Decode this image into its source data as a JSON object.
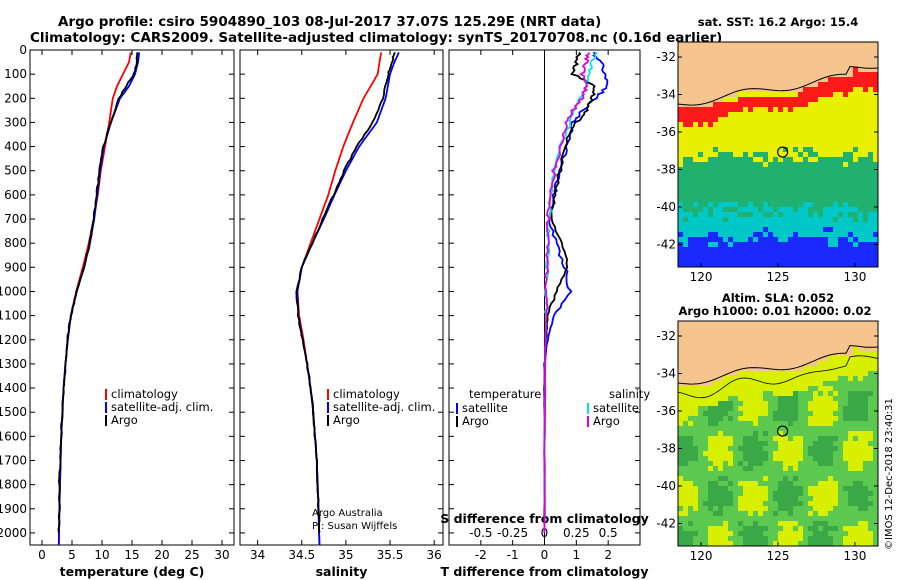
{
  "title": {
    "line1": "Argo profile: csiro 5904890_103 08-Jul-2017 37.07S 125.29E (NRT data)",
    "line2": "Climatology: CARS2009. Satellite-adjusted climatology: synTS_20170708.nc (0.16d earlier)"
  },
  "colors": {
    "climatology": "#ff0000",
    "satellite_adj": "#0000ff",
    "argo": "#000000",
    "sal_satellite": "#00e5e5",
    "sal_argo": "#e000e0",
    "land": "#f5c48f",
    "sst_red": "#ff1a1a",
    "sst_yellow": "#e8f000",
    "sst_green": "#20b070",
    "sst_cyan": "#00c8c8",
    "sst_blue": "#1a2aff",
    "sla_yellow": "#d8f000",
    "sla_green": "#5cc850"
  },
  "chart_data": [
    {
      "type": "line",
      "xlabel": "temperature (deg C)",
      "ylabel": "",
      "xlim": [
        -2,
        32
      ],
      "ylim": [
        2050,
        0
      ],
      "xticks": [
        0,
        5,
        10,
        15,
        20,
        25,
        30
      ],
      "yticks": [
        0,
        100,
        200,
        300,
        400,
        500,
        600,
        700,
        800,
        900,
        1000,
        1100,
        1200,
        1300,
        1400,
        1500,
        1600,
        1700,
        1800,
        1900,
        2000
      ],
      "legend": [
        "climatology",
        "satellite-adj. clim.",
        "Argo"
      ],
      "series": [
        {
          "name": "climatology",
          "color": "#ff0000",
          "points": [
            [
              14.8,
              10
            ],
            [
              14.5,
              50
            ],
            [
              13.5,
              100
            ],
            [
              12.5,
              150
            ],
            [
              11.8,
              200
            ],
            [
              11.2,
              300
            ],
            [
              10.5,
              400
            ],
            [
              9.8,
              500
            ],
            [
              9.3,
              600
            ],
            [
              8.6,
              700
            ],
            [
              7.8,
              800
            ],
            [
              6.8,
              900
            ],
            [
              5.7,
              1000
            ],
            [
              4.8,
              1100
            ],
            [
              4.3,
              1200
            ],
            [
              3.9,
              1300
            ],
            [
              3.6,
              1400
            ],
            [
              3.4,
              1500
            ],
            [
              3.2,
              1600
            ],
            [
              3.1,
              1700
            ],
            [
              3.0,
              1800
            ],
            [
              2.9,
              1900
            ],
            [
              2.8,
              2050
            ]
          ]
        },
        {
          "name": "satellite-adj. clim.",
          "color": "#0000ff",
          "points": [
            [
              16.2,
              10
            ],
            [
              16.0,
              50
            ],
            [
              15.5,
              100
            ],
            [
              14.5,
              150
            ],
            [
              13.0,
              200
            ],
            [
              11.5,
              300
            ],
            [
              10.3,
              400
            ],
            [
              9.7,
              500
            ],
            [
              9.2,
              600
            ],
            [
              8.7,
              700
            ],
            [
              8.0,
              800
            ],
            [
              7.0,
              900
            ],
            [
              5.8,
              1000
            ],
            [
              4.8,
              1100
            ],
            [
              4.3,
              1200
            ],
            [
              3.9,
              1300
            ],
            [
              3.6,
              1400
            ],
            [
              3.4,
              1500
            ],
            [
              3.2,
              1600
            ],
            [
              3.1,
              1700
            ],
            [
              3.0,
              1800
            ],
            [
              2.9,
              1900
            ],
            [
              2.8,
              2050
            ]
          ]
        },
        {
          "name": "Argo",
          "color": "#000000",
          "points": [
            [
              15.9,
              10
            ],
            [
              15.8,
              50
            ],
            [
              15.3,
              100
            ],
            [
              14.0,
              150
            ],
            [
              12.8,
              200
            ],
            [
              11.5,
              300
            ],
            [
              10.2,
              400
            ],
            [
              9.6,
              500
            ],
            [
              9.1,
              600
            ],
            [
              8.6,
              700
            ],
            [
              8.0,
              800
            ],
            [
              7.0,
              900
            ],
            [
              5.8,
              1000
            ],
            [
              4.8,
              1100
            ],
            [
              4.2,
              1200
            ],
            [
              3.9,
              1300
            ],
            [
              3.6,
              1400
            ],
            [
              3.4,
              1500
            ],
            [
              3.2,
              1600
            ],
            [
              3.0,
              1700
            ],
            [
              2.9,
              1800
            ],
            [
              2.9,
              1900
            ],
            [
              2.8,
              2000
            ]
          ]
        }
      ]
    },
    {
      "type": "line",
      "xlabel": "salinity",
      "ylabel": "",
      "xlim": [
        33.8,
        36.1
      ],
      "ylim": [
        2050,
        0
      ],
      "xticks": [
        34,
        34.5,
        35,
        35.5,
        36
      ],
      "legend": [
        "climatology",
        "satellite-adj. clim.",
        "Argo"
      ],
      "credit": [
        "Argo Australia",
        "PI: Susan Wijffels"
      ],
      "series": [
        {
          "name": "climatology",
          "color": "#ff0000",
          "points": [
            [
              35.4,
              10
            ],
            [
              35.38,
              50
            ],
            [
              35.36,
              100
            ],
            [
              35.2,
              200
            ],
            [
              35.08,
              300
            ],
            [
              34.97,
              400
            ],
            [
              34.88,
              500
            ],
            [
              34.8,
              600
            ],
            [
              34.7,
              700
            ],
            [
              34.6,
              800
            ],
            [
              34.5,
              900
            ],
            [
              34.45,
              1000
            ],
            [
              34.47,
              1100
            ],
            [
              34.52,
              1200
            ],
            [
              34.56,
              1300
            ],
            [
              34.6,
              1400
            ],
            [
              34.63,
              1500
            ],
            [
              34.65,
              1600
            ],
            [
              34.67,
              1700
            ],
            [
              34.68,
              1800
            ],
            [
              34.69,
              1900
            ],
            [
              34.7,
              2050
            ]
          ]
        },
        {
          "name": "satellite-adj. clim.",
          "color": "#0000ff",
          "points": [
            [
              35.6,
              10
            ],
            [
              35.55,
              50
            ],
            [
              35.5,
              100
            ],
            [
              35.45,
              200
            ],
            [
              35.35,
              300
            ],
            [
              35.15,
              400
            ],
            [
              35.0,
              500
            ],
            [
              34.87,
              600
            ],
            [
              34.75,
              700
            ],
            [
              34.62,
              800
            ],
            [
              34.5,
              900
            ],
            [
              34.45,
              1000
            ],
            [
              34.46,
              1100
            ],
            [
              34.51,
              1200
            ],
            [
              34.56,
              1300
            ],
            [
              34.6,
              1400
            ],
            [
              34.63,
              1500
            ],
            [
              34.65,
              1600
            ],
            [
              34.67,
              1700
            ],
            [
              34.68,
              1800
            ],
            [
              34.69,
              1900
            ],
            [
              34.7,
              2050
            ]
          ]
        },
        {
          "name": "Argo",
          "color": "#000000",
          "points": [
            [
              35.55,
              10
            ],
            [
              35.52,
              50
            ],
            [
              35.48,
              100
            ],
            [
              35.42,
              200
            ],
            [
              35.3,
              300
            ],
            [
              35.12,
              400
            ],
            [
              34.98,
              500
            ],
            [
              34.86,
              600
            ],
            [
              34.74,
              700
            ],
            [
              34.62,
              800
            ],
            [
              34.5,
              900
            ],
            [
              34.44,
              1000
            ],
            [
              34.46,
              1100
            ],
            [
              34.51,
              1200
            ],
            [
              34.56,
              1300
            ],
            [
              34.6,
              1400
            ],
            [
              34.63,
              1500
            ],
            [
              34.65,
              1600
            ],
            [
              34.67,
              1700
            ],
            [
              34.68,
              1800
            ],
            [
              34.69,
              1900
            ],
            [
              34.7,
              2000
            ]
          ]
        }
      ]
    },
    {
      "type": "line",
      "xlabel": "T difference from climatology",
      "xlabel_top": "S difference from climatology",
      "xlim": [
        -3,
        3
      ],
      "ylim": [
        2050,
        0
      ],
      "xticks": [
        -2,
        -1,
        0,
        1,
        2
      ],
      "xticks_top": [
        -0.5,
        -0.25,
        0,
        0.25,
        0.5
      ],
      "xticklabels_top": [
        "-0.5",
        "-0.25",
        "0",
        "0.25",
        "0.5"
      ],
      "legend_left_title": "temperature",
      "legend_right_title": "salinity",
      "legend": [
        "satellite",
        "Argo",
        "satellite",
        "Argo"
      ],
      "series": [
        {
          "name": "satellite",
          "color": "#0000ff",
          "points": [
            [
              1.5,
              10
            ],
            [
              1.8,
              50
            ],
            [
              1.9,
              100
            ],
            [
              2.0,
              150
            ],
            [
              1.6,
              200
            ],
            [
              1.2,
              250
            ],
            [
              0.9,
              300
            ],
            [
              0.7,
              400
            ],
            [
              0.5,
              500
            ],
            [
              0.3,
              600
            ],
            [
              0.15,
              700
            ],
            [
              0.35,
              800
            ],
            [
              0.65,
              900
            ],
            [
              0.8,
              1000
            ],
            [
              0.3,
              1100
            ],
            [
              0.1,
              1200
            ],
            [
              0.0,
              1300
            ],
            [
              0.0,
              1500
            ],
            [
              0.0,
              2000
            ]
          ]
        },
        {
          "name": "Argo",
          "color": "#000000",
          "points": [
            [
              1.1,
              10
            ],
            [
              1.0,
              50
            ],
            [
              0.9,
              100
            ],
            [
              1.6,
              150
            ],
            [
              1.5,
              200
            ],
            [
              1.3,
              250
            ],
            [
              1.0,
              300
            ],
            [
              0.6,
              400
            ],
            [
              0.5,
              500
            ],
            [
              0.3,
              600
            ],
            [
              0.2,
              700
            ],
            [
              0.55,
              800
            ],
            [
              0.7,
              900
            ],
            [
              0.4,
              1000
            ],
            [
              0.1,
              1100
            ],
            [
              0.05,
              1200
            ],
            [
              0.0,
              1300
            ],
            [
              0.0,
              1500
            ],
            [
              0.0,
              2000
            ]
          ]
        },
        {
          "name": "satellite",
          "color": "#00e5e5",
          "points": [
            [
              1.6,
              10
            ],
            [
              1.5,
              50
            ],
            [
              1.4,
              100
            ],
            [
              1.3,
              150
            ],
            [
              1.1,
              200
            ],
            [
              0.8,
              300
            ],
            [
              0.5,
              400
            ],
            [
              0.3,
              500
            ],
            [
              0.2,
              600
            ],
            [
              0.12,
              700
            ],
            [
              0.1,
              800
            ],
            [
              0.08,
              900
            ],
            [
              0.06,
              1000
            ],
            [
              0.05,
              1100
            ],
            [
              0.03,
              1200
            ],
            [
              0.02,
              1400
            ],
            [
              0.0,
              1600
            ],
            [
              0.0,
              2000
            ]
          ]
        },
        {
          "name": "Argo",
          "color": "#e000e0",
          "points": [
            [
              1.4,
              10
            ],
            [
              1.3,
              50
            ],
            [
              1.2,
              100
            ],
            [
              1.3,
              150
            ],
            [
              1.2,
              200
            ],
            [
              0.9,
              250
            ],
            [
              0.7,
              300
            ],
            [
              0.5,
              400
            ],
            [
              0.3,
              500
            ],
            [
              0.2,
              600
            ],
            [
              0.12,
              700
            ],
            [
              0.09,
              800
            ],
            [
              0.08,
              900
            ],
            [
              0.06,
              1000
            ],
            [
              0.05,
              1100
            ],
            [
              0.03,
              1200
            ],
            [
              0.02,
              1400
            ],
            [
              0.0,
              1600
            ],
            [
              0.0,
              2000
            ]
          ]
        }
      ]
    }
  ],
  "maps": {
    "sst": {
      "title": "sat. SST: 16.2 Argo: 15.4",
      "xticks": [
        120,
        125,
        130
      ],
      "yticks": [
        -32,
        -34,
        -36,
        -38,
        -40,
        -42
      ],
      "xlim": [
        118.5,
        131.5
      ],
      "ylim": [
        -43.2,
        -31.2
      ],
      "marker": [
        125.3,
        -37.07
      ]
    },
    "sla": {
      "title_line1": "Altim. SLA: 0.052",
      "title_line2": "Argo h1000: 0.01 h2000: 0.02",
      "xticks": [
        120,
        125,
        130
      ],
      "yticks": [
        -32,
        -34,
        -36,
        -38,
        -40,
        -42
      ],
      "xlim": [
        118.5,
        131.5
      ],
      "ylim": [
        -43.2,
        -31.2
      ],
      "marker": [
        125.3,
        -37.07
      ]
    }
  },
  "watermark": "©IMOS 12-Dec-2018 23:40:31"
}
